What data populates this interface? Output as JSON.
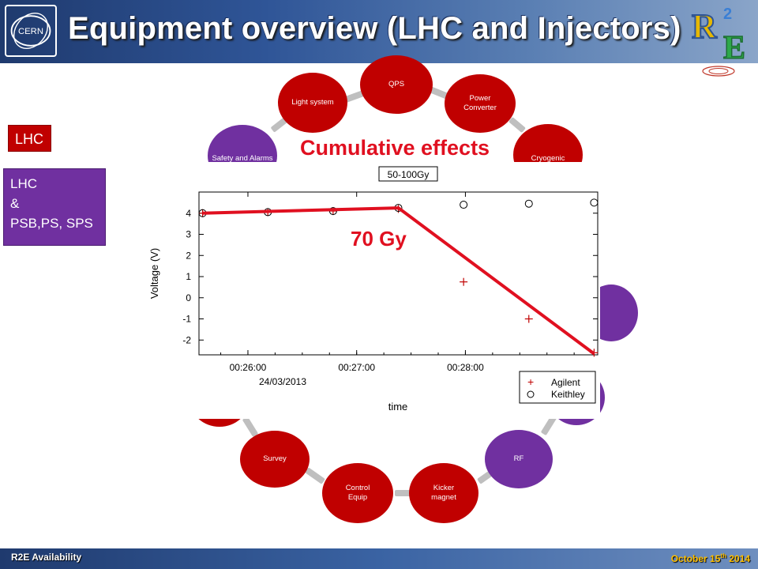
{
  "header": {
    "title": "Equipment overview (LHC and Injectors)"
  },
  "logos": {
    "cern_text": "CERN",
    "r2e_text": "R2E"
  },
  "left_tags": {
    "lhc": "LHC",
    "lhc_injectors_lines": [
      "LHC",
      "&",
      "PSB,PS, SPS"
    ]
  },
  "nodes": {
    "qps": "QPS",
    "power_converter": "Power Converter",
    "light_system": "Light system",
    "safety_alarms": "Safety and Alarms",
    "cryogenic": "Cryogenic",
    "survey": "Survey",
    "control_equip": "Control Equip",
    "kicker_magnet": "Kicker magnet",
    "rf": "RF"
  },
  "colors": {
    "red": "#c00000",
    "purple": "#7030a0",
    "annotation": "#e01020"
  },
  "overlay": {
    "cumulative": "Cumulative effects",
    "dose": "70 Gy"
  },
  "chart_data": {
    "type": "scatter",
    "title": "50-100Gy",
    "xlabel": "time",
    "ylabel": "Voltage (V)",
    "date_label": "24/03/2013",
    "x_tick_labels": [
      "00:26:00",
      "00:27:00",
      "00:28:00"
    ],
    "y_tick_labels": [
      "4",
      "3",
      "2",
      "1",
      "0",
      "-1",
      "-2"
    ],
    "xlim": [
      "00:25:33",
      "00:29:13"
    ],
    "ylim": [
      -2.7,
      5.0
    ],
    "grid": false,
    "legend_position": "bottom-right",
    "series": [
      {
        "name": "Agilent",
        "marker": "+",
        "color": "#c00000",
        "points": [
          {
            "x": "00:25:35",
            "y": 4.0
          },
          {
            "x": "00:26:11",
            "y": 4.05
          },
          {
            "x": "00:26:47",
            "y": 4.1
          },
          {
            "x": "00:27:23",
            "y": 4.2
          },
          {
            "x": "00:27:59",
            "y": 0.75
          },
          {
            "x": "00:28:35",
            "y": -1.0
          },
          {
            "x": "00:29:11",
            "y": -2.6
          }
        ]
      },
      {
        "name": "Keithley",
        "marker": "o",
        "color": "#000000",
        "points": [
          {
            "x": "00:25:35",
            "y": 4.0
          },
          {
            "x": "00:26:11",
            "y": 4.05
          },
          {
            "x": "00:26:47",
            "y": 4.1
          },
          {
            "x": "00:27:23",
            "y": 4.25
          },
          {
            "x": "00:27:59",
            "y": 4.4
          },
          {
            "x": "00:28:35",
            "y": 4.45
          },
          {
            "x": "00:29:11",
            "y": 4.5
          }
        ]
      }
    ],
    "trend_line": {
      "color": "#e01020",
      "points": [
        {
          "x": "00:25:35",
          "y": 4.0
        },
        {
          "x": "00:27:23",
          "y": 4.25
        },
        {
          "x": "00:29:11",
          "y": -2.65
        }
      ]
    }
  },
  "footer": {
    "left": "R2E Availability",
    "right_main": "October 15",
    "right_sup": "th",
    "right_year": " 2014"
  }
}
